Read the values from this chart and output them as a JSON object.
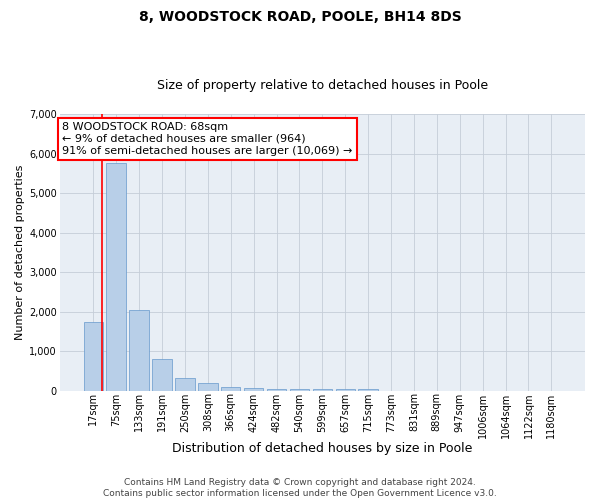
{
  "title": "8, WOODSTOCK ROAD, POOLE, BH14 8DS",
  "subtitle": "Size of property relative to detached houses in Poole",
  "xlabel": "Distribution of detached houses by size in Poole",
  "ylabel": "Number of detached properties",
  "categories": [
    "17sqm",
    "75sqm",
    "133sqm",
    "191sqm",
    "250sqm",
    "308sqm",
    "366sqm",
    "424sqm",
    "482sqm",
    "540sqm",
    "599sqm",
    "657sqm",
    "715sqm",
    "773sqm",
    "831sqm",
    "889sqm",
    "947sqm",
    "1006sqm",
    "1064sqm",
    "1122sqm",
    "1180sqm"
  ],
  "values": [
    1750,
    5750,
    2050,
    800,
    330,
    190,
    100,
    85,
    60,
    50,
    50,
    50,
    45,
    0,
    0,
    0,
    0,
    0,
    0,
    0,
    0
  ],
  "bar_color": "#b8cfe8",
  "bar_edge_color": "#6699cc",
  "background_color": "#e8eef5",
  "grid_color": "#c5cdd8",
  "red_line_x": 0.38,
  "annotation_line1": "8 WOODSTOCK ROAD: 68sqm",
  "annotation_line2": "← 9% of detached houses are smaller (964)",
  "annotation_line3": "91% of semi-detached houses are larger (10,069) →",
  "annotation_box_color": "white",
  "annotation_border_color": "red",
  "ylim": [
    0,
    7000
  ],
  "yticks": [
    0,
    1000,
    2000,
    3000,
    4000,
    5000,
    6000,
    7000
  ],
  "footer_line1": "Contains HM Land Registry data © Crown copyright and database right 2024.",
  "footer_line2": "Contains public sector information licensed under the Open Government Licence v3.0.",
  "title_fontsize": 10,
  "subtitle_fontsize": 9,
  "xlabel_fontsize": 9,
  "ylabel_fontsize": 8,
  "tick_fontsize": 7,
  "annotation_fontsize": 8,
  "footer_fontsize": 6.5
}
